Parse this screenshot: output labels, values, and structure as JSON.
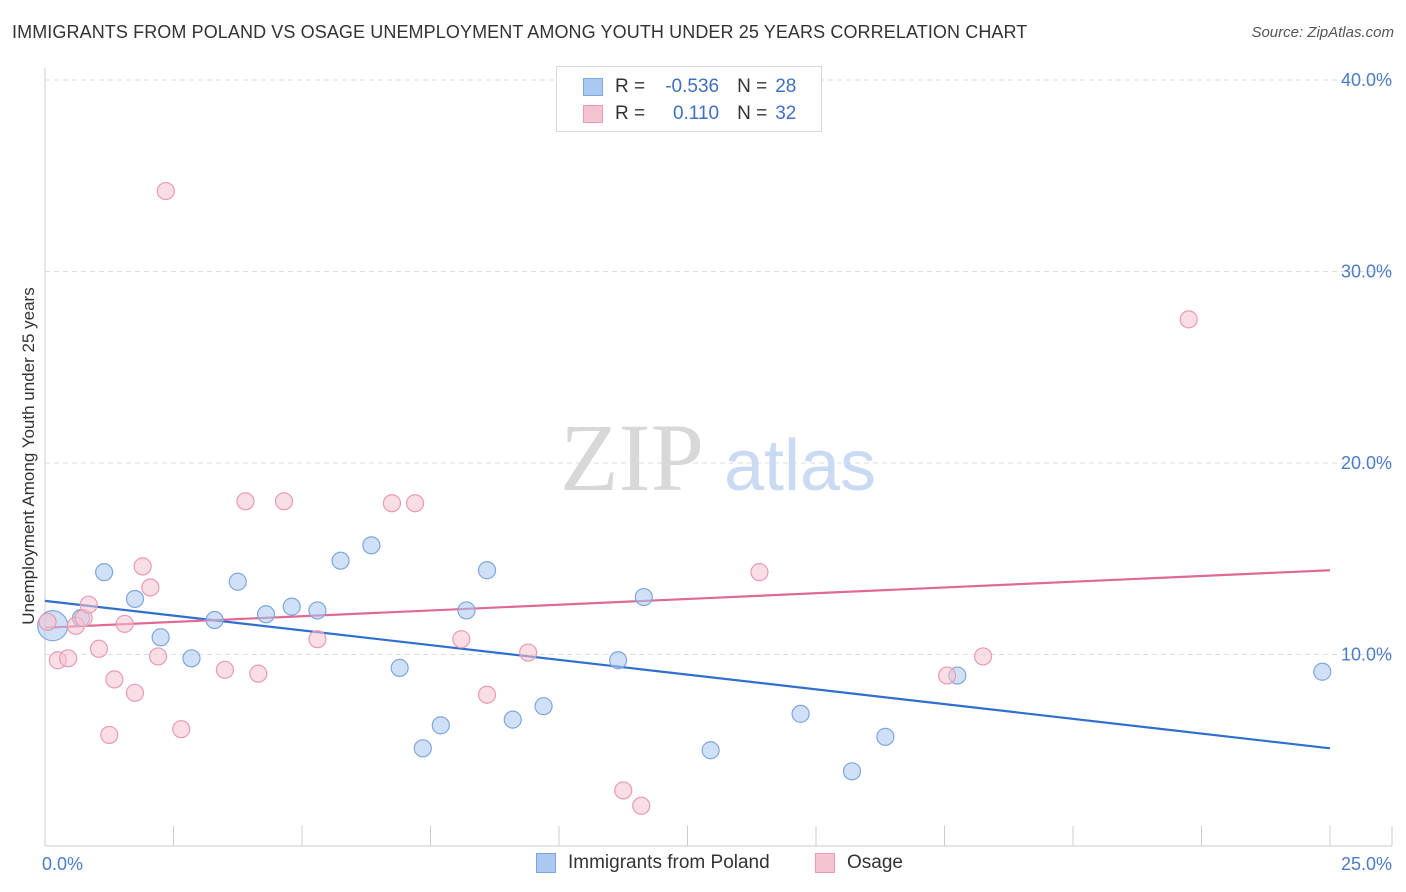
{
  "header": {
    "title": "IMMIGRANTS FROM POLAND VS OSAGE UNEMPLOYMENT AMONG YOUTH UNDER 25 YEARS CORRELATION CHART",
    "source": "Source: ZipAtlas.com"
  },
  "legend": {
    "rows": [
      {
        "r_label": "R =",
        "r_value": "-0.536",
        "n_label": "N =",
        "n_value": "28"
      },
      {
        "r_label": "R =",
        "r_value": " 0.110",
        "n_label": "N =",
        "n_value": "32"
      }
    ]
  },
  "watermark": {
    "zip": "ZIP",
    "atlas": "atlas"
  },
  "colors": {
    "blue_fill": "#aac8f0",
    "blue_stroke": "#7fa6df",
    "blue_line": "#2f6fce",
    "pink_fill": "#f6c3d1",
    "pink_stroke": "#ea9ab2",
    "pink_line": "#e06a95",
    "grid": "#dddddd",
    "axis_text": "#4a7cc7"
  },
  "chart_data": {
    "type": "scatter",
    "title": "IMMIGRANTS FROM POLAND VS OSAGE UNEMPLOYMENT AMONG YOUTH UNDER 25 YEARS CORRELATION CHART",
    "xlabel": "",
    "ylabel": "Unemployment Among Youth under 25 years",
    "xlim": [
      0,
      25
    ],
    "ylim": [
      0,
      42
    ],
    "x_tick_labels": [
      {
        "value": 0,
        "label": "0.0%"
      },
      {
        "value": 25,
        "label": "25.0%"
      }
    ],
    "y_tick_labels": [
      {
        "value": 10,
        "label": "10.0%"
      },
      {
        "value": 20,
        "label": "20.0%"
      },
      {
        "value": 30,
        "label": "30.0%"
      },
      {
        "value": 40,
        "label": "40.0%"
      }
    ],
    "grid": true,
    "series": [
      {
        "name": "Immigrants from Poland",
        "color": "blue",
        "points": [
          {
            "x": 0.15,
            "y": 11.5,
            "big": true
          },
          {
            "x": 0.7,
            "y": 11.9
          },
          {
            "x": 1.15,
            "y": 14.3
          },
          {
            "x": 1.75,
            "y": 12.9
          },
          {
            "x": 2.25,
            "y": 10.9
          },
          {
            "x": 2.85,
            "y": 9.8
          },
          {
            "x": 3.3,
            "y": 11.8
          },
          {
            "x": 3.75,
            "y": 13.8
          },
          {
            "x": 4.3,
            "y": 12.1
          },
          {
            "x": 4.8,
            "y": 12.5
          },
          {
            "x": 5.3,
            "y": 12.3
          },
          {
            "x": 5.75,
            "y": 14.9
          },
          {
            "x": 6.35,
            "y": 15.7
          },
          {
            "x": 6.9,
            "y": 9.3
          },
          {
            "x": 7.35,
            "y": 5.1
          },
          {
            "x": 7.7,
            "y": 6.3
          },
          {
            "x": 8.2,
            "y": 12.3
          },
          {
            "x": 8.6,
            "y": 14.4
          },
          {
            "x": 9.1,
            "y": 6.6
          },
          {
            "x": 9.7,
            "y": 7.3
          },
          {
            "x": 11.15,
            "y": 9.7
          },
          {
            "x": 11.65,
            "y": 13.0
          },
          {
            "x": 12.95,
            "y": 5.0
          },
          {
            "x": 14.7,
            "y": 6.9
          },
          {
            "x": 15.7,
            "y": 3.9
          },
          {
            "x": 16.35,
            "y": 5.7
          },
          {
            "x": 17.75,
            "y": 8.9
          },
          {
            "x": 24.85,
            "y": 9.1
          }
        ],
        "trend": {
          "x": [
            0,
            25
          ],
          "y": [
            12.8,
            5.1
          ]
        }
      },
      {
        "name": "Osage",
        "color": "pink",
        "points": [
          {
            "x": 0.05,
            "y": 11.7
          },
          {
            "x": 0.25,
            "y": 9.7
          },
          {
            "x": 0.45,
            "y": 9.8
          },
          {
            "x": 0.6,
            "y": 11.5
          },
          {
            "x": 0.75,
            "y": 11.9
          },
          {
            "x": 0.85,
            "y": 12.6
          },
          {
            "x": 1.05,
            "y": 10.3
          },
          {
            "x": 1.25,
            "y": 5.8
          },
          {
            "x": 1.35,
            "y": 8.7
          },
          {
            "x": 1.55,
            "y": 11.6
          },
          {
            "x": 1.75,
            "y": 8.0
          },
          {
            "x": 1.9,
            "y": 14.6
          },
          {
            "x": 2.05,
            "y": 13.5
          },
          {
            "x": 2.2,
            "y": 9.9
          },
          {
            "x": 2.35,
            "y": 34.2
          },
          {
            "x": 2.65,
            "y": 6.1
          },
          {
            "x": 3.5,
            "y": 9.2
          },
          {
            "x": 3.9,
            "y": 18.0
          },
          {
            "x": 4.15,
            "y": 9.0
          },
          {
            "x": 4.65,
            "y": 18.0
          },
          {
            "x": 5.3,
            "y": 10.8
          },
          {
            "x": 6.75,
            "y": 17.9
          },
          {
            "x": 7.2,
            "y": 17.9
          },
          {
            "x": 8.1,
            "y": 10.8
          },
          {
            "x": 8.6,
            "y": 7.9
          },
          {
            "x": 9.4,
            "y": 10.1
          },
          {
            "x": 11.25,
            "y": 2.9
          },
          {
            "x": 11.6,
            "y": 2.1
          },
          {
            "x": 13.9,
            "y": 14.3
          },
          {
            "x": 17.55,
            "y": 8.9
          },
          {
            "x": 18.25,
            "y": 9.9
          },
          {
            "x": 22.25,
            "y": 27.5
          }
        ],
        "trend": {
          "x": [
            0,
            25
          ],
          "y": [
            11.4,
            14.4
          ]
        }
      }
    ]
  }
}
